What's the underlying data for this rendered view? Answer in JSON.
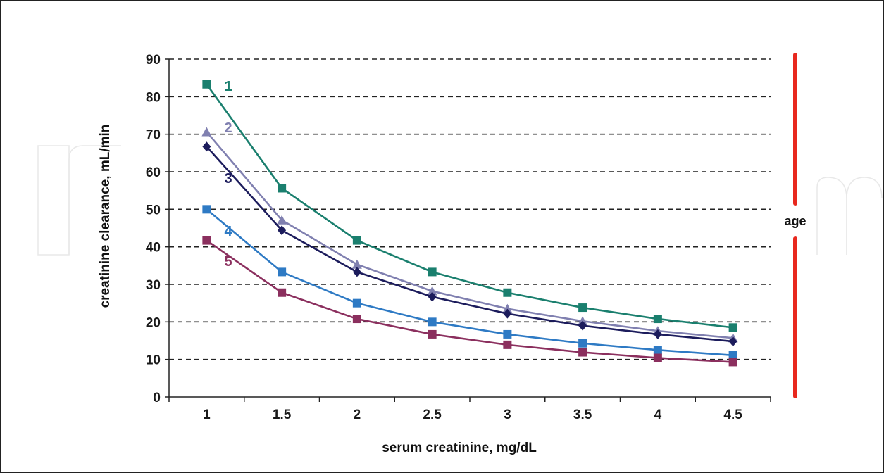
{
  "chart_data": {
    "type": "line",
    "xlabel": "serum creatinine, mg/dL",
    "ylabel": "creatinine clearance, mL/min",
    "x": [
      1,
      1.5,
      2,
      2.5,
      3,
      3.5,
      4,
      4.5
    ],
    "x_tick_labels": [
      "1",
      "1.5",
      "2",
      "2.5",
      "3",
      "3.5",
      "4",
      "4.5"
    ],
    "y_ticks": [
      0,
      10,
      20,
      30,
      40,
      50,
      60,
      70,
      80,
      90
    ],
    "ylim": [
      0,
      90
    ],
    "grid": "horizontal dashed",
    "series": [
      {
        "name": "1",
        "color": "#1a7f6e",
        "marker": "square",
        "values": [
          83.3,
          55.6,
          41.7,
          33.3,
          27.8,
          23.8,
          20.8,
          18.5
        ]
      },
      {
        "name": "2",
        "color": "#8080b0",
        "marker": "triangle",
        "values": [
          70.6,
          47.1,
          35.3,
          28.2,
          23.5,
          20.2,
          17.6,
          15.7
        ]
      },
      {
        "name": "3",
        "color": "#1c1c5c",
        "marker": "diamond",
        "values": [
          66.7,
          44.4,
          33.3,
          26.7,
          22.2,
          19.0,
          16.7,
          14.8
        ]
      },
      {
        "name": "4",
        "color": "#2e7ac4",
        "marker": "square",
        "values": [
          50.0,
          33.3,
          25.0,
          20.0,
          16.7,
          14.3,
          12.5,
          11.1
        ]
      },
      {
        "name": "5",
        "color": "#8b2f5e",
        "marker": "square",
        "values": [
          41.7,
          27.8,
          20.8,
          16.7,
          13.9,
          11.9,
          10.4,
          9.3
        ]
      }
    ],
    "annotation": {
      "text": "age",
      "color": "#e8281e"
    }
  }
}
